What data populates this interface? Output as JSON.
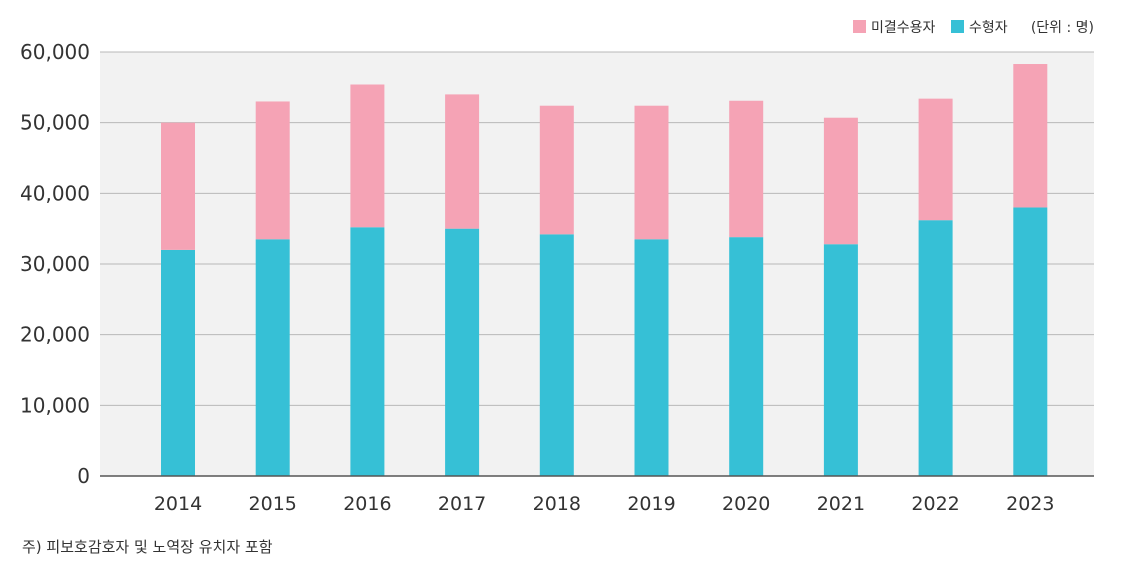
{
  "chart_data": {
    "type": "bar",
    "stacked": true,
    "categories": [
      "2014",
      "2015",
      "2016",
      "2017",
      "2018",
      "2019",
      "2020",
      "2021",
      "2022",
      "2023"
    ],
    "series": [
      {
        "name": "수형자",
        "color": "#36c0d6",
        "values": [
          32000,
          33500,
          35200,
          35000,
          34200,
          33500,
          33800,
          32800,
          36200,
          38000
        ]
      },
      {
        "name": "미결수용자",
        "color": "#f5a3b5",
        "values": [
          18000,
          19500,
          20200,
          19000,
          18200,
          18900,
          19300,
          17900,
          17200,
          20300
        ]
      }
    ],
    "ylim": [
      0,
      60000
    ],
    "yticks": [
      0,
      10000,
      20000,
      30000,
      40000,
      50000,
      60000
    ],
    "ytick_labels": [
      "0",
      "10,000",
      "20,000",
      "30,000",
      "40,000",
      "50,000",
      "60,000"
    ],
    "unit_label": "(단위 : 명)",
    "grid": true,
    "legend_position": "top-right",
    "plot_background": "#f2f2f2",
    "grid_color": "#b8b8b8",
    "axis_color": "#555555"
  },
  "note": "주) 피보호감호자 및 노역장 유치자 포함"
}
